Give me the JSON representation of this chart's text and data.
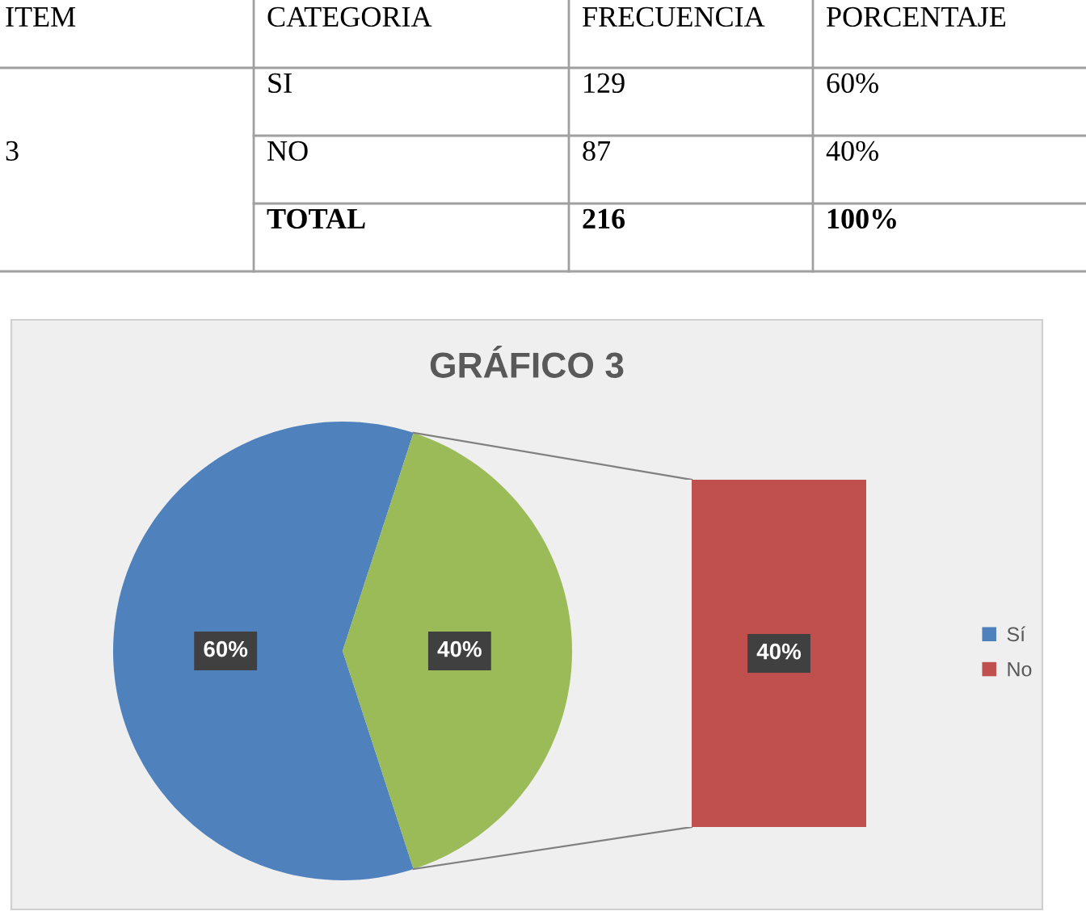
{
  "chart_data": [
    {
      "type": "other",
      "categories": [
        "ITEM",
        "CATEGORIA",
        "FRECUENCIA",
        "PORCENTAJE"
      ],
      "cell_labels": [
        [
          "3",
          "SI",
          "129",
          "60%"
        ],
        [
          null,
          "NO",
          "87",
          "40%"
        ],
        [
          null,
          "TOTAL",
          "216",
          "100%"
        ]
      ]
    },
    {
      "type": "pie",
      "title": "GRÁFICO 3",
      "categories": [
        "Sí",
        null
      ],
      "values": [
        60,
        40
      ],
      "colors": [
        "#4f81bd",
        "#9bbb59"
      ],
      "value_labels": [
        "60%",
        "40%"
      ],
      "legend": "right"
    },
    {
      "type": "bar",
      "categories": [
        null
      ],
      "series": [
        {
          "name": "No",
          "color": "#c0504d",
          "values": [
            40
          ],
          "value_labels": [
            "40%"
          ]
        }
      ],
      "legend": "right"
    }
  ]
}
